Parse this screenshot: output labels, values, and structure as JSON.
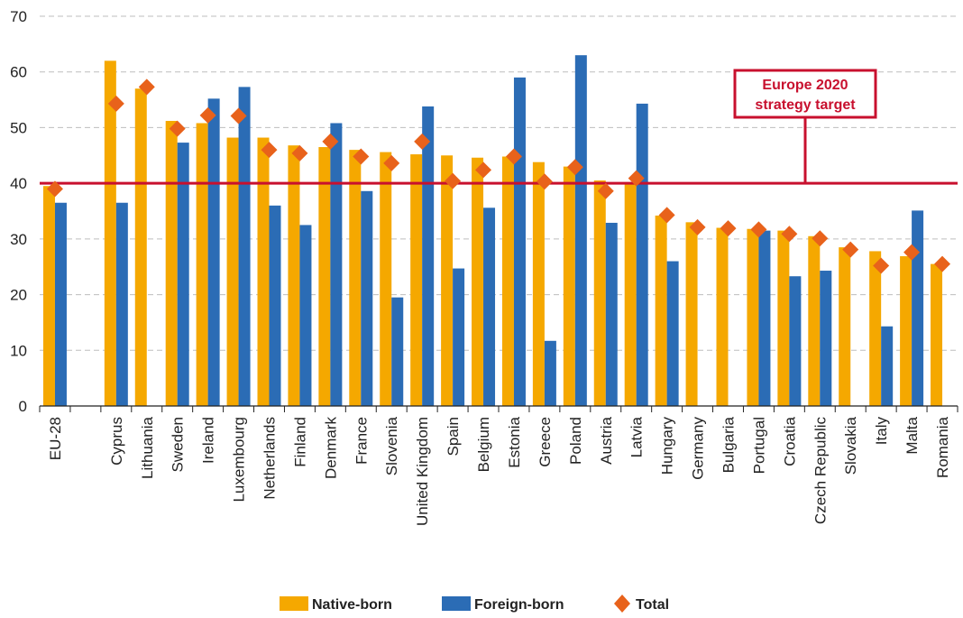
{
  "chart_data": {
    "type": "bar",
    "categories": [
      "EU-28",
      "",
      "Cyprus",
      "Lithuania",
      "Sweden",
      "Ireland",
      "Luxembourg",
      "Netherlands",
      "Finland",
      "Denmark",
      "France",
      "Slovenia",
      "United Kingdom",
      "Spain",
      "Belgium",
      "Estonia",
      "Greece",
      "Poland",
      "Austria",
      "Latvia",
      "Hungary",
      "Germany",
      "Bulgaria",
      "Portugal",
      "Croatia",
      "Czech Republic",
      "Slovakia",
      "Italy",
      "Malta",
      "Romania"
    ],
    "series": [
      {
        "name": "Native-born",
        "type": "bar",
        "color": "#f5a800",
        "values": [
          39.5,
          null,
          62.0,
          57.0,
          51.2,
          50.8,
          48.2,
          48.2,
          46.8,
          46.5,
          46.0,
          45.6,
          45.2,
          45.0,
          44.6,
          44.8,
          43.8,
          43.0,
          40.5,
          40.2,
          34.2,
          33.0,
          32.0,
          31.8,
          31.5,
          30.5,
          28.5,
          27.8,
          26.9,
          25.5
        ]
      },
      {
        "name": "Foreign-born",
        "type": "bar",
        "color": "#2b6cb5",
        "values": [
          36.5,
          null,
          36.5,
          null,
          47.3,
          55.2,
          57.3,
          36.0,
          32.5,
          50.8,
          38.6,
          19.5,
          53.8,
          24.7,
          35.6,
          59.0,
          11.7,
          63.0,
          32.9,
          54.3,
          26.0,
          null,
          null,
          31.5,
          23.3,
          24.3,
          null,
          14.3,
          35.1,
          null
        ]
      },
      {
        "name": "Total",
        "type": "marker",
        "color": "#e8621b",
        "values": [
          39.0,
          null,
          54.3,
          57.3,
          49.8,
          52.2,
          52.1,
          46.0,
          45.4,
          47.5,
          44.8,
          43.6,
          47.5,
          40.4,
          42.4,
          44.8,
          40.3,
          42.9,
          38.6,
          40.9,
          34.3,
          32.1,
          31.9,
          31.7,
          30.9,
          30.1,
          28.1,
          25.2,
          27.6,
          25.5
        ]
      }
    ],
    "yticks": [
      "0",
      "10",
      "20",
      "30",
      "40",
      "50",
      "60",
      "70"
    ],
    "ylim": [
      0,
      70
    ],
    "grid": true,
    "legend_position": "bottom",
    "reference_line": {
      "value": 40,
      "label_lines": [
        "Europe 2020",
        "strategy target"
      ],
      "color": "#c8102e"
    }
  },
  "legend": {
    "native": "Native-born",
    "foreign": "Foreign-born",
    "total": "Total"
  }
}
